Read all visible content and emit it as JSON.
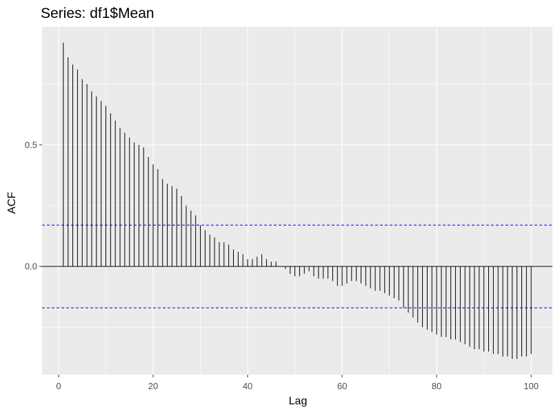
{
  "chart_data": {
    "type": "bar",
    "title": "Series: df1$Mean",
    "xlabel": "Lag",
    "ylabel": "ACF",
    "xlim": [
      -3.5,
      104.5
    ],
    "ylim": [
      -0.445,
      0.985
    ],
    "x_ticks": [
      0,
      20,
      40,
      60,
      80,
      100
    ],
    "x_tick_labels": [
      "0",
      "20",
      "40",
      "60",
      "80",
      "100"
    ],
    "y_ticks": [
      0.0,
      0.5
    ],
    "y_tick_labels": [
      "0.0",
      "0.5"
    ],
    "confidence_bounds": [
      0.17,
      -0.17
    ],
    "grid": true,
    "legend": "none",
    "colors": {
      "panel_bg": "#ebebeb",
      "grid": "#ffffff",
      "bars": "#000000",
      "zero_line": "#000000",
      "bounds": "#0000cc"
    },
    "lags": [
      1,
      2,
      3,
      4,
      5,
      6,
      7,
      8,
      9,
      10,
      11,
      12,
      13,
      14,
      15,
      16,
      17,
      18,
      19,
      20,
      21,
      22,
      23,
      24,
      25,
      26,
      27,
      28,
      29,
      30,
      31,
      32,
      33,
      34,
      35,
      36,
      37,
      38,
      39,
      40,
      41,
      42,
      43,
      44,
      45,
      46,
      47,
      48,
      49,
      50,
      51,
      52,
      53,
      54,
      55,
      56,
      57,
      58,
      59,
      60,
      61,
      62,
      63,
      64,
      65,
      66,
      67,
      68,
      69,
      70,
      71,
      72,
      73,
      74,
      75,
      76,
      77,
      78,
      79,
      80,
      81,
      82,
      83,
      84,
      85,
      86,
      87,
      88,
      89,
      90,
      91,
      92,
      93,
      94,
      95,
      96,
      97,
      98,
      99,
      100
    ],
    "values": [
      0.92,
      0.86,
      0.83,
      0.81,
      0.77,
      0.75,
      0.72,
      0.7,
      0.68,
      0.66,
      0.63,
      0.6,
      0.57,
      0.55,
      0.53,
      0.51,
      0.5,
      0.49,
      0.45,
      0.42,
      0.4,
      0.36,
      0.34,
      0.33,
      0.32,
      0.29,
      0.25,
      0.23,
      0.21,
      0.17,
      0.15,
      0.13,
      0.12,
      0.1,
      0.1,
      0.09,
      0.07,
      0.06,
      0.05,
      0.03,
      0.03,
      0.04,
      0.05,
      0.03,
      0.02,
      0.02,
      0.0,
      -0.01,
      -0.03,
      -0.04,
      -0.04,
      -0.03,
      -0.02,
      -0.04,
      -0.05,
      -0.05,
      -0.05,
      -0.06,
      -0.08,
      -0.08,
      -0.07,
      -0.06,
      -0.06,
      -0.07,
      -0.08,
      -0.09,
      -0.1,
      -0.1,
      -0.11,
      -0.12,
      -0.13,
      -0.14,
      -0.17,
      -0.19,
      -0.21,
      -0.23,
      -0.25,
      -0.26,
      -0.27,
      -0.28,
      -0.29,
      -0.29,
      -0.3,
      -0.3,
      -0.31,
      -0.32,
      -0.33,
      -0.34,
      -0.34,
      -0.35,
      -0.35,
      -0.36,
      -0.36,
      -0.37,
      -0.37,
      -0.38,
      -0.38,
      -0.37,
      -0.37,
      -0.36
    ]
  }
}
